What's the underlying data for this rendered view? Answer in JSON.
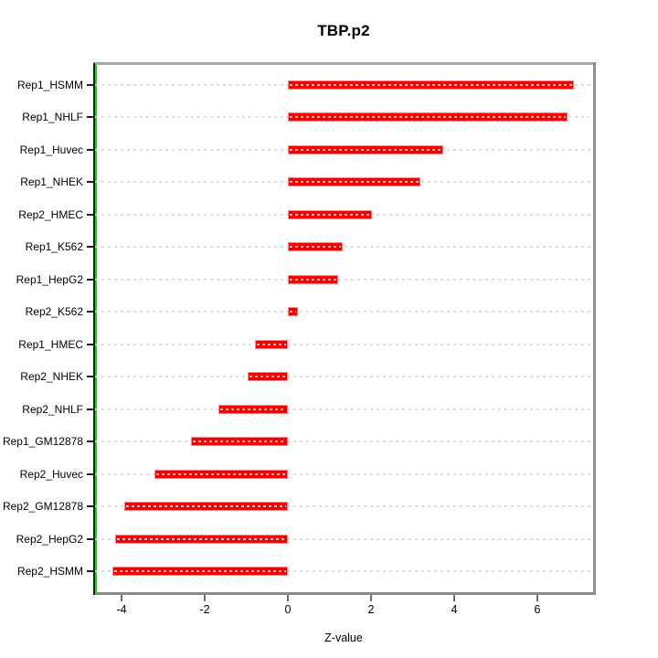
{
  "title": "TBP.p2",
  "xlabel": "Z-value",
  "chart_data": {
    "type": "bar",
    "orientation": "horizontal",
    "title": "TBP.p2",
    "xlabel": "Z-value",
    "ylabel": "",
    "categories": [
      "Rep1_HSMM",
      "Rep1_NHLF",
      "Rep1_Huvec",
      "Rep1_NHEK",
      "Rep2_HMEC",
      "Rep1_K562",
      "Rep1_HepG2",
      "Rep2_K562",
      "Rep1_HMEC",
      "Rep2_NHEK",
      "Rep2_NHLF",
      "Rep1_GM12878",
      "Rep2_Huvec",
      "Rep2_GM12878",
      "Rep2_HepG2",
      "Rep2_HSMM"
    ],
    "values": [
      6.88,
      6.73,
      3.74,
      3.19,
      2.02,
      1.32,
      1.21,
      0.24,
      -0.79,
      -0.97,
      -1.67,
      -2.33,
      -3.21,
      -3.93,
      -4.15,
      -4.22
    ],
    "x_ticks": [
      -4,
      -2,
      0,
      2,
      4,
      6
    ],
    "x_tick_labels": [
      "-4",
      "-2",
      "0",
      "2",
      "4",
      "6"
    ],
    "xlim": [
      -4.65,
      7.35
    ],
    "grid": "horizontal-dashed",
    "legend": "none",
    "colors": {
      "bar_fill": "#f50000",
      "bar_border": "#ff8585",
      "bar_inner_dash": "#ffffff",
      "zero_line": "#00e300",
      "gridline": "#dcdcdc",
      "axis_dark": "#1c1c1c",
      "frame_gray": "#8f8f8f",
      "background": "#ffffff",
      "text": "#000000"
    }
  }
}
